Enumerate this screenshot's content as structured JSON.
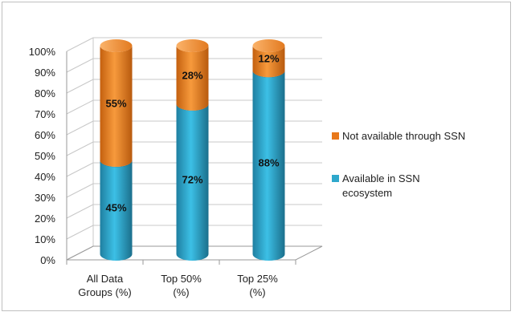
{
  "chart_data": {
    "type": "bar",
    "stacked": true,
    "three_d": true,
    "categories": [
      [
        "All Data",
        "Groups (%)"
      ],
      [
        "Top 50%",
        "(%)"
      ],
      [
        "Top 25%",
        "(%)"
      ]
    ],
    "series": [
      {
        "name": "Available in SSN ecosystem",
        "values": [
          45,
          72,
          88
        ],
        "labels": [
          "45%",
          "72%",
          "88%"
        ],
        "color": "#2ea8cc"
      },
      {
        "name": "Not available through SSN",
        "values": [
          55,
          28,
          12
        ],
        "labels": [
          "55%",
          "28%",
          "12%"
        ],
        "color": "#e8781a"
      }
    ],
    "legend": {
      "placement": "right",
      "entries": [
        {
          "lines": [
            "Not available through SSN"
          ],
          "color": "#e8781a"
        },
        {
          "lines": [
            "Available in SSN",
            "ecosystem"
          ],
          "color": "#2ea8cc"
        }
      ]
    },
    "yticks": [
      "0%",
      "10%",
      "20%",
      "30%",
      "40%",
      "50%",
      "60%",
      "70%",
      "80%",
      "90%",
      "100%"
    ],
    "ylim": [
      0,
      100
    ],
    "grid": true
  }
}
